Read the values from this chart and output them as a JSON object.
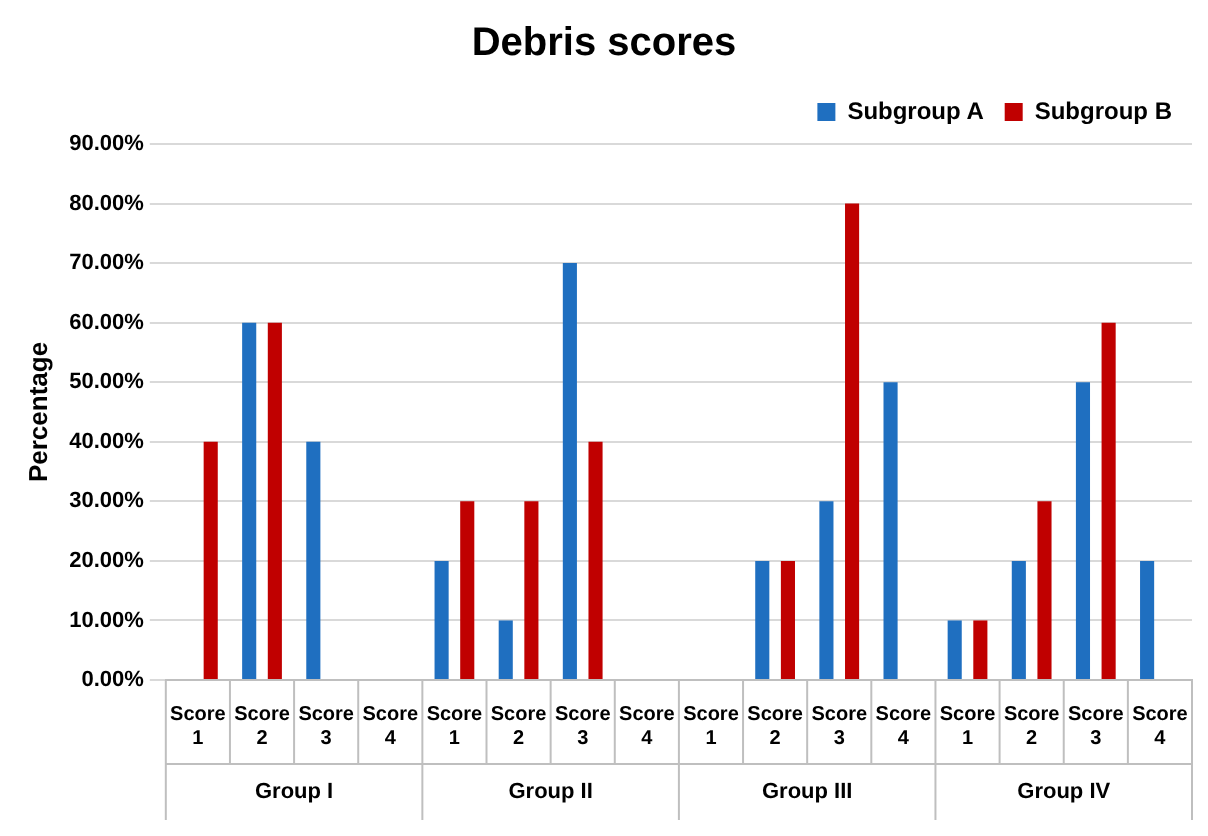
{
  "chart_data": {
    "type": "bar",
    "title": "Debris scores",
    "ylabel": "Percentage",
    "categories": [
      "Score 1",
      "Score 2",
      "Score 3",
      "Score 4",
      "Score 1",
      "Score 2",
      "Score 3",
      "Score 4",
      "Score 1",
      "Score 2",
      "Score 3",
      "Score 4",
      "Score 1",
      "Score 2",
      "Score 3",
      "Score 4"
    ],
    "series": [
      {
        "name": "Subgroup A",
        "color": "#1f6fc0",
        "values": [
          0,
          60,
          40,
          0,
          20,
          10,
          70,
          0,
          0,
          20,
          30,
          50,
          10,
          20,
          50,
          20
        ]
      },
      {
        "name": "Subgroup B",
        "color": "#c00000",
        "values": [
          40,
          60,
          0,
          0,
          30,
          30,
          40,
          0,
          0,
          20,
          80,
          0,
          10,
          30,
          60,
          0
        ]
      }
    ],
    "ylim": [
      0,
      90
    ],
    "yticks": [
      {
        "value": 0,
        "label": "0.00%"
      },
      {
        "value": 10,
        "label": "10.00%"
      },
      {
        "value": 20,
        "label": "20.00%"
      },
      {
        "value": 30,
        "label": "30.00%"
      },
      {
        "value": 40,
        "label": "40.00%"
      },
      {
        "value": 50,
        "label": "50.00%"
      },
      {
        "value": 60,
        "label": "60.00%"
      },
      {
        "value": 70,
        "label": "70.00%"
      },
      {
        "value": 80,
        "label": "80.00%"
      },
      {
        "value": 90,
        "label": "90.00%"
      }
    ],
    "annotations": [
      "Group I",
      "Group II",
      "Group III",
      "Group IV"
    ],
    "grid": "y",
    "legend": "top right"
  }
}
